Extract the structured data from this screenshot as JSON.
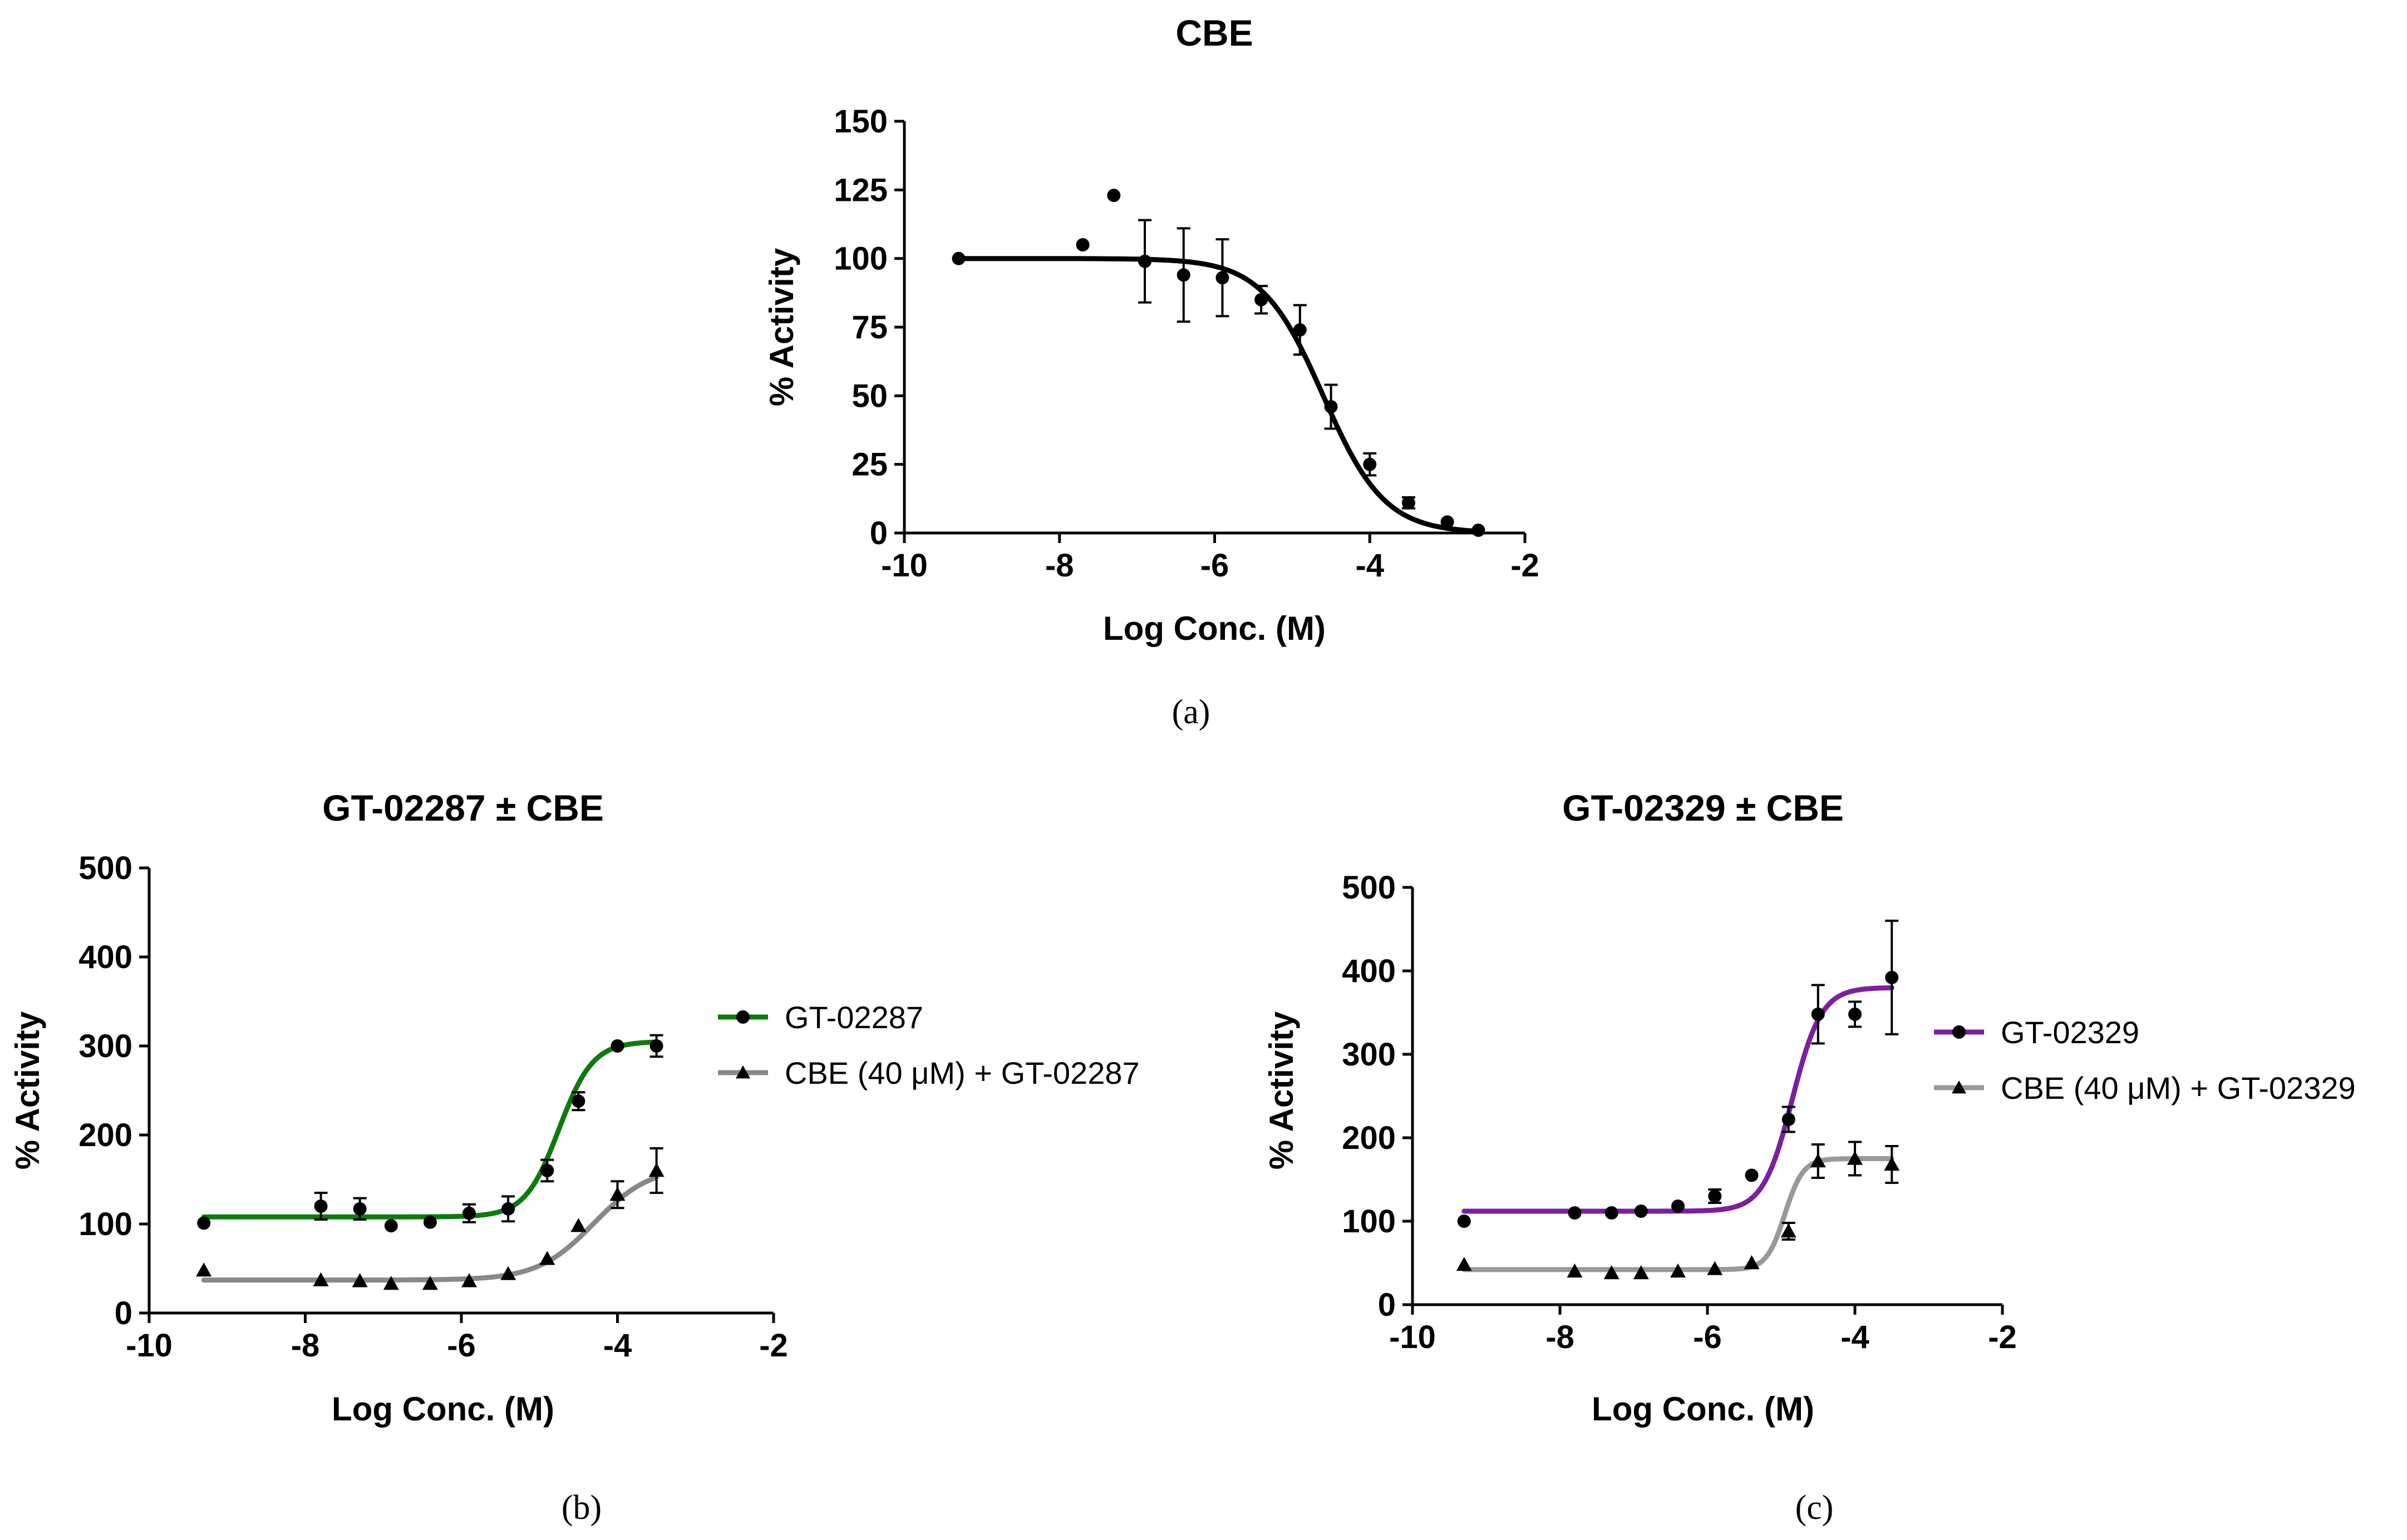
{
  "chart_data": [
    {
      "type": "scatter",
      "panel_label": "(a)",
      "title": "CBE",
      "xlabel": "Log Conc. (M)",
      "ylabel": "% Activity",
      "xlim": [
        -10,
        -2
      ],
      "ylim": [
        0,
        150
      ],
      "xticks": [
        -10,
        -8,
        -6,
        -4,
        -2
      ],
      "yticks": [
        0,
        25,
        50,
        75,
        100,
        125,
        150
      ],
      "series": [
        {
          "name": "CBE",
          "color": "#000000",
          "marker": "circle",
          "fit": {
            "bottom": 0,
            "top": 100,
            "logIC50": -4.6,
            "hill": -1.1,
            "xrange": [
              -9.3,
              -2.6
            ]
          },
          "points": [
            {
              "x": -9.3,
              "y": 100
            },
            {
              "x": -7.7,
              "y": 105
            },
            {
              "x": -7.3,
              "y": 123
            },
            {
              "x": -6.9,
              "y": 99,
              "err": 15
            },
            {
              "x": -6.4,
              "y": 94,
              "err": 17
            },
            {
              "x": -5.9,
              "y": 93,
              "err": 14
            },
            {
              "x": -5.4,
              "y": 85,
              "err": 5
            },
            {
              "x": -4.9,
              "y": 74,
              "err": 9
            },
            {
              "x": -4.5,
              "y": 46,
              "err": 8
            },
            {
              "x": -4.0,
              "y": 25,
              "err": 4
            },
            {
              "x": -3.5,
              "y": 11,
              "err": 2
            },
            {
              "x": -3.0,
              "y": 4
            },
            {
              "x": -2.6,
              "y": 1
            }
          ]
        }
      ]
    },
    {
      "type": "scatter",
      "panel_label": "(b)",
      "title": "GT-02287 ± CBE",
      "xlabel": "Log Conc. (M)",
      "ylabel": "% Activity",
      "xlim": [
        -10,
        -2
      ],
      "ylim": [
        0,
        500
      ],
      "xticks": [
        -10,
        -8,
        -6,
        -4,
        -2
      ],
      "yticks": [
        0,
        100,
        200,
        300,
        400,
        500
      ],
      "series": [
        {
          "name": "GT-02287",
          "color": "#0e7a0e",
          "marker": "circle",
          "fit": {
            "bottom": 108,
            "top": 305,
            "logIC50": -4.75,
            "hill": 2.0,
            "xrange": [
              -9.3,
              -3.5
            ]
          },
          "points": [
            {
              "x": -9.3,
              "y": 101
            },
            {
              "x": -7.8,
              "y": 120,
              "err": 15
            },
            {
              "x": -7.3,
              "y": 117,
              "err": 12
            },
            {
              "x": -6.9,
              "y": 98
            },
            {
              "x": -6.4,
              "y": 102
            },
            {
              "x": -5.9,
              "y": 112,
              "err": 10
            },
            {
              "x": -5.4,
              "y": 117,
              "err": 14
            },
            {
              "x": -4.9,
              "y": 160,
              "err": 12
            },
            {
              "x": -4.5,
              "y": 238,
              "err": 10
            },
            {
              "x": -4.0,
              "y": 300
            },
            {
              "x": -3.5,
              "y": 300,
              "err": 12
            }
          ]
        },
        {
          "name": "CBE (40 μM) + GT-02287",
          "color": "#888888",
          "marker": "triangle",
          "fit": {
            "bottom": 37,
            "top": 165,
            "logIC50": -4.3,
            "hill": 1.2,
            "xrange": [
              -9.3,
              -3.5
            ]
          },
          "points": [
            {
              "x": -9.3,
              "y": 48
            },
            {
              "x": -7.8,
              "y": 37
            },
            {
              "x": -7.3,
              "y": 36
            },
            {
              "x": -6.9,
              "y": 33
            },
            {
              "x": -6.4,
              "y": 33
            },
            {
              "x": -5.9,
              "y": 36
            },
            {
              "x": -5.4,
              "y": 44
            },
            {
              "x": -4.9,
              "y": 61
            },
            {
              "x": -4.5,
              "y": 98
            },
            {
              "x": -4.0,
              "y": 133,
              "err": 15
            },
            {
              "x": -3.5,
              "y": 160,
              "err": 25
            }
          ]
        }
      ]
    },
    {
      "type": "scatter",
      "panel_label": "(c)",
      "title": "GT-02329 ± CBE",
      "xlabel": "Log Conc. (M)",
      "ylabel": "% Activity",
      "xlim": [
        -10,
        -2
      ],
      "ylim": [
        0,
        500
      ],
      "xticks": [
        -10,
        -8,
        -6,
        -4,
        -2
      ],
      "yticks": [
        0,
        100,
        200,
        300,
        400,
        500
      ],
      "series": [
        {
          "name": "GT-02329",
          "color": "#7b1fa2",
          "marker": "circle",
          "fit": {
            "bottom": 112,
            "top": 380,
            "logIC50": -4.85,
            "hill": 2.2,
            "xrange": [
              -9.3,
              -3.5
            ]
          },
          "points": [
            {
              "x": -9.3,
              "y": 100
            },
            {
              "x": -7.8,
              "y": 110
            },
            {
              "x": -7.3,
              "y": 110
            },
            {
              "x": -6.9,
              "y": 112
            },
            {
              "x": -6.4,
              "y": 118
            },
            {
              "x": -5.9,
              "y": 130,
              "err": 8
            },
            {
              "x": -5.4,
              "y": 155
            },
            {
              "x": -4.9,
              "y": 222,
              "err": 15
            },
            {
              "x": -4.5,
              "y": 348,
              "err": 35
            },
            {
              "x": -4.0,
              "y": 348,
              "err": 15
            },
            {
              "x": -3.5,
              "y": 392,
              "err": 68
            }
          ]
        },
        {
          "name": "CBE (40 μM) + GT-02329",
          "color": "#999999",
          "marker": "triangle",
          "fit": {
            "bottom": 42,
            "top": 175,
            "logIC50": -4.95,
            "hill": 3.5,
            "xrange": [
              -9.3,
              -3.5
            ]
          },
          "points": [
            {
              "x": -9.3,
              "y": 48
            },
            {
              "x": -7.8,
              "y": 40
            },
            {
              "x": -7.3,
              "y": 38
            },
            {
              "x": -6.9,
              "y": 38
            },
            {
              "x": -6.4,
              "y": 40
            },
            {
              "x": -5.9,
              "y": 43
            },
            {
              "x": -5.4,
              "y": 50
            },
            {
              "x": -4.9,
              "y": 88,
              "err": 10
            },
            {
              "x": -4.5,
              "y": 172,
              "err": 20
            },
            {
              "x": -4.0,
              "y": 175,
              "err": 20
            },
            {
              "x": -3.5,
              "y": 168,
              "err": 22
            }
          ]
        }
      ]
    }
  ]
}
